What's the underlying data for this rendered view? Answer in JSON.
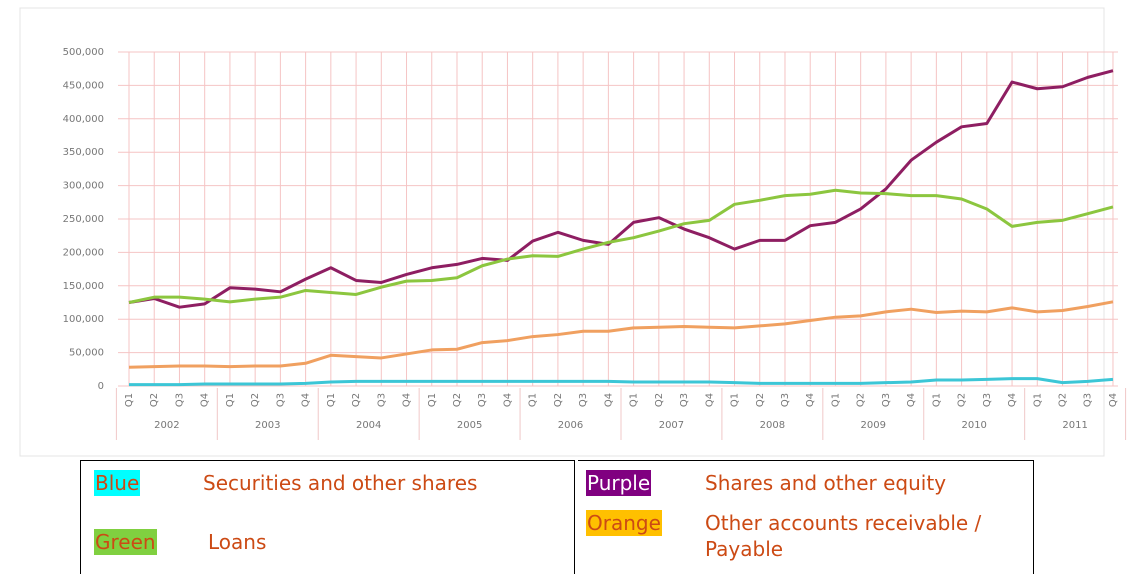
{
  "chart_data": {
    "type": "line",
    "categories": [
      "Q1",
      "Q2",
      "Q3",
      "Q4",
      "Q1",
      "Q2",
      "Q3",
      "Q4",
      "Q1",
      "Q2",
      "Q3",
      "Q4",
      "Q1",
      "Q2",
      "Q3",
      "Q4",
      "Q1",
      "Q2",
      "Q3",
      "Q4",
      "Q1",
      "Q2",
      "Q3",
      "Q4",
      "Q1",
      "Q2",
      "Q3",
      "Q4",
      "Q1",
      "Q2",
      "Q3",
      "Q4",
      "Q1",
      "Q2",
      "Q3",
      "Q4",
      "Q1",
      "Q2",
      "Q3",
      "Q4"
    ],
    "year_labels": [
      "2002",
      "2003",
      "2004",
      "2005",
      "2006",
      "2007",
      "2008",
      "2009",
      "2010",
      "2011"
    ],
    "ylim": [
      0,
      500000
    ],
    "yticks": [
      0,
      {
        "value": 50000,
        "label": "50,000"
      },
      {
        "value": 100000,
        "label": "100,000"
      },
      {
        "value": 150000,
        "label": "150,000"
      },
      {
        "value": 200000,
        "label": "200,000"
      },
      {
        "value": 250000,
        "label": "250,000"
      },
      {
        "value": 300000,
        "label": "300,000"
      },
      {
        "value": 350000,
        "label": "350,000"
      },
      {
        "value": 400000,
        "label": "400,000"
      },
      {
        "value": 450000,
        "label": "450,000"
      },
      {
        "value": 500000,
        "label": "500,000"
      }
    ],
    "grid": true,
    "series": [
      {
        "name": "Securities and other shares",
        "color_name": "Blue",
        "color": "#3cc6d6",
        "swatch": "#00ffff",
        "values": [
          2000,
          2000,
          2000,
          3000,
          3000,
          3000,
          3000,
          4000,
          6000,
          7000,
          7000,
          7000,
          7000,
          7000,
          7000,
          7000,
          7000,
          7000,
          7000,
          7000,
          6000,
          6000,
          6000,
          6000,
          5000,
          4000,
          4000,
          4000,
          4000,
          4000,
          5000,
          6000,
          9000,
          9000,
          10000,
          11000,
          11000,
          5000,
          7000,
          10000
        ]
      },
      {
        "name": "Shares and other equity",
        "color_name": "Purple",
        "color": "#8e1e62",
        "swatch": "#800080",
        "values": [
          125000,
          131000,
          118000,
          123000,
          147000,
          145000,
          141000,
          160000,
          177000,
          158000,
          155000,
          167000,
          177000,
          182000,
          191000,
          188000,
          217000,
          230000,
          218000,
          212000,
          245000,
          252000,
          235000,
          222000,
          205000,
          218000,
          218000,
          240000,
          245000,
          265000,
          295000,
          338000,
          365000,
          388000,
          393000,
          455000,
          445000,
          448000,
          462000,
          472000
        ]
      },
      {
        "name": "Loans",
        "color_name": "Green",
        "color": "#8cc63f",
        "swatch": "#80d040",
        "values": [
          125000,
          133000,
          133000,
          130000,
          126000,
          130000,
          133000,
          143000,
          140000,
          137000,
          148000,
          157000,
          158000,
          162000,
          180000,
          190000,
          195000,
          194000,
          205000,
          215000,
          222000,
          232000,
          243000,
          248000,
          272000,
          278000,
          285000,
          287000,
          293000,
          289000,
          288000,
          285000,
          285000,
          280000,
          265000,
          239000,
          245000,
          248000,
          258000,
          268000
        ]
      },
      {
        "name": "Other accounts receivable / Payable",
        "color_name": "Orange",
        "color": "#f0a060",
        "swatch": "#ffc000",
        "values": [
          28000,
          29000,
          30000,
          30000,
          29000,
          30000,
          30000,
          34000,
          46000,
          44000,
          42000,
          48000,
          54000,
          55000,
          65000,
          68000,
          74000,
          77000,
          82000,
          82000,
          87000,
          88000,
          89000,
          88000,
          87000,
          90000,
          93000,
          98000,
          103000,
          105000,
          111000,
          115000,
          110000,
          112000,
          111000,
          117000,
          111000,
          113000,
          119000,
          126000
        ]
      }
    ]
  }
}
